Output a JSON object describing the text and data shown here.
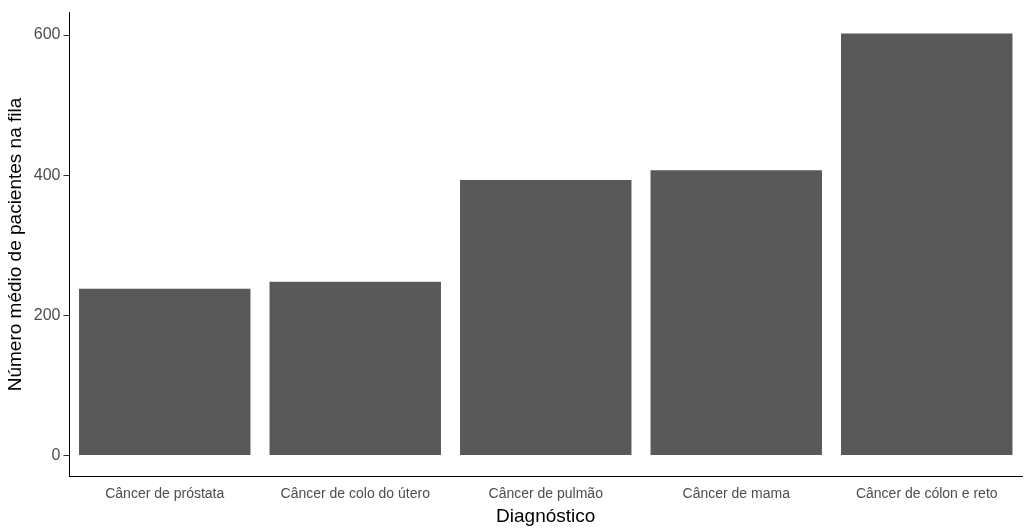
{
  "chart_data": {
    "type": "bar",
    "xlabel": "Diagnóstico",
    "ylabel": "Número médio de pacientes na fila",
    "categories": [
      "Câncer de próstata",
      "Câncer de colo do útero",
      "Câncer de pulmão",
      "Câncer de mama",
      "Câncer de cólon e reto"
    ],
    "values": [
      238,
      248,
      393,
      407,
      602
    ],
    "color": "#595959",
    "ylim": [
      -30,
      632
    ],
    "yticks": [
      0,
      200,
      400,
      600
    ],
    "grid": false,
    "legend": false
  }
}
